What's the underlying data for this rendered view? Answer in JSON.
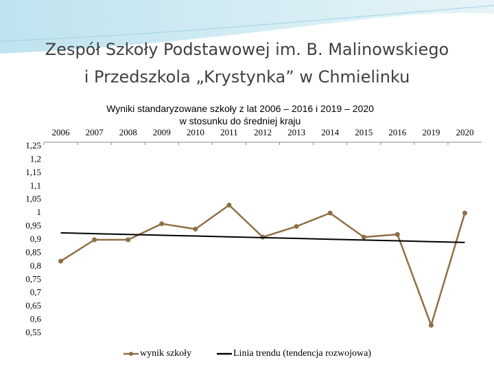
{
  "chart_data": {
    "type": "line",
    "title": [
      "Zespół Szkoły Podstawowej im. B. Malinowskiego",
      "i Przedszkola „Krystynka” w Chmielinku"
    ],
    "subtitle": [
      "Wyniki  standaryzowane szkoły z lat 2006 – 2016 i 2019 – 2020",
      "w stosunku do średniej kraju"
    ],
    "categories": [
      "2006",
      "2007",
      "2008",
      "2009",
      "2010",
      "2011",
      "2012",
      "2013",
      "2014",
      "2015",
      "2016",
      "2019",
      "2020"
    ],
    "series": [
      {
        "name": "wynik szkoły",
        "color": "#8c7045",
        "marker": true,
        "values": [
          0.82,
          0.9,
          0.9,
          0.96,
          0.94,
          1.03,
          0.91,
          0.95,
          1.0,
          0.91,
          0.92,
          0.58,
          1.0
        ]
      },
      {
        "name": "Linia trendu (tendencja rozwojowa)",
        "color": "#000000",
        "marker": false,
        "values": [
          0.926,
          0.923,
          0.92,
          0.917,
          0.914,
          0.911,
          0.908,
          0.905,
          0.902,
          0.899,
          0.896,
          0.893,
          0.89
        ]
      }
    ],
    "ylim": [
      0.55,
      1.25
    ],
    "yticks": [
      {
        "value": 1.25,
        "label": "1,25"
      },
      {
        "value": 1.2,
        "label": "1,2"
      },
      {
        "value": 1.15,
        "label": "1,15"
      },
      {
        "value": 1.1,
        "label": "1,1"
      },
      {
        "value": 1.05,
        "label": "1,05"
      },
      1,
      {
        "value": 0.95,
        "label": "0,95"
      },
      {
        "value": 0.9,
        "label": "0,9"
      },
      {
        "value": 0.85,
        "label": "0,85"
      },
      {
        "value": 0.8,
        "label": "0,8"
      },
      {
        "value": 0.75,
        "label": "0,75"
      },
      {
        "value": 0.7,
        "label": "0,7"
      },
      {
        "value": 0.65,
        "label": "0,65"
      },
      {
        "value": 0.6,
        "label": "0,6"
      },
      {
        "value": 0.55,
        "label": "0,55"
      }
    ],
    "grid": false,
    "legend": "bottom"
  }
}
